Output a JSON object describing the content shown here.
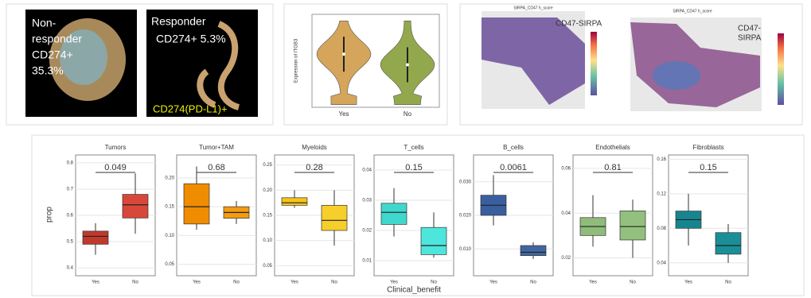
{
  "panel_a": {
    "left_lines": [
      "Non-",
      "responder",
      "CD274+",
      "35.3%"
    ],
    "right_lines": [
      "Responder",
      "CD274+ 5.3%"
    ],
    "marker": "CD274(PD-L1)+"
  },
  "panel_c": {
    "titles": [
      "SIRPA_CD47 h_score",
      "SIRPA_CD47 h_score"
    ],
    "left_label": "CD47-SIRPA",
    "right_label": [
      "CD47-",
      "SIRPA"
    ]
  },
  "box_axes": {
    "ylabel": "prop",
    "xlabel": "Clinical_benefit"
  },
  "chart_data": [
    {
      "type": "violin",
      "ylabel": "Expression of ITGB3",
      "categories": [
        "Yes",
        "No"
      ],
      "colors": [
        "#d4a55a",
        "#93a84c"
      ],
      "medians": [
        0.5,
        0.1
      ],
      "ylim": [
        -1.5,
        2
      ]
    },
    {
      "type": "box",
      "title": "Tumors",
      "pvalue": 0.049,
      "categories": [
        "Yes",
        "No"
      ],
      "colors": [
        "#c0392b",
        "#d9473a"
      ],
      "q1": [
        0.49,
        0.59
      ],
      "median": [
        0.52,
        0.64
      ],
      "q3": [
        0.54,
        0.68
      ],
      "whisker_low": [
        0.45,
        0.53
      ],
      "whisker_high": [
        0.57,
        0.76
      ],
      "ylim": [
        0.37,
        0.83
      ],
      "yticks": [
        0.4,
        0.5,
        0.6,
        0.7,
        0.8
      ]
    },
    {
      "type": "box",
      "title": "Tumor+TAM",
      "pvalue": 0.68,
      "categories": [
        "Yes",
        "No"
      ],
      "colors": [
        "#f08c00",
        "#f39c12"
      ],
      "q1": [
        0.12,
        0.13
      ],
      "median": [
        0.15,
        0.14
      ],
      "q3": [
        0.19,
        0.15
      ],
      "whisker_low": [
        0.11,
        0.12
      ],
      "whisker_high": [
        0.22,
        0.16
      ],
      "ylim": [
        0.03,
        0.24
      ],
      "yticks": [
        0.05,
        {
          "value": 0.1,
          "label": "0.10"
        },
        0.15,
        {
          "value": 0.2,
          "label": "0.20"
        }
      ]
    },
    {
      "type": "box",
      "title": "Myeloids",
      "pvalue": 0.28,
      "categories": [
        "Yes",
        "No"
      ],
      "colors": [
        "#f5c518",
        "#f7cf2a"
      ],
      "q1": [
        0.17,
        0.12
      ],
      "median": [
        0.175,
        0.14
      ],
      "q3": [
        0.185,
        0.17
      ],
      "whisker_low": [
        0.165,
        0.09
      ],
      "whisker_high": [
        0.2,
        0.2
      ],
      "ylim": [
        0.03,
        0.27
      ],
      "yticks": [
        0.05,
        {
          "value": 0.1,
          "label": "0.10"
        },
        0.15,
        {
          "value": 0.2,
          "label": "0.20"
        },
        0.25
      ]
    },
    {
      "type": "box",
      "title": "T_cells",
      "pvalue": 0.15,
      "categories": [
        "Yes",
        "No"
      ],
      "colors": [
        "#40d8cc",
        "#4ee6dc"
      ],
      "q1": [
        0.022,
        0.012
      ],
      "median": [
        0.026,
        0.015
      ],
      "q3": [
        0.029,
        0.021
      ],
      "whisker_low": [
        0.018,
        0.011
      ],
      "whisker_high": [
        0.034,
        0.026
      ],
      "ylim": [
        0.005,
        0.045
      ],
      "yticks": [
        0.01,
        0.02,
        0.03,
        0.04
      ]
    },
    {
      "type": "box",
      "title": "B_cells",
      "pvalue": 0.0061,
      "categories": [
        "Yes",
        "No"
      ],
      "colors": [
        "#3a5f9f",
        "#41669f"
      ],
      "q1": [
        0.02,
        0.008
      ],
      "median": [
        0.023,
        0.009
      ],
      "q3": [
        0.026,
        0.011
      ],
      "whisker_low": [
        0.017,
        0.007
      ],
      "whisker_high": [
        0.032,
        0.012
      ],
      "ylim": [
        0.002,
        0.038
      ],
      "yticks": [
        {
          "value": 0.01,
          "label": "0.010"
        },
        {
          "value": 0.02,
          "label": "0.020"
        },
        {
          "value": 0.03,
          "label": "0.030"
        }
      ]
    },
    {
      "type": "box",
      "title": "Endothelials",
      "pvalue": 0.81,
      "categories": [
        "Yes",
        "No"
      ],
      "colors": [
        "#8fbc7a",
        "#93c07e"
      ],
      "q1": [
        0.03,
        0.028
      ],
      "median": [
        0.034,
        0.034
      ],
      "q3": [
        0.038,
        0.041
      ],
      "whisker_low": [
        0.025,
        0.02
      ],
      "whisker_high": [
        0.048,
        0.046
      ],
      "ylim": [
        0.012,
        0.066
      ],
      "yticks": [
        0.02,
        0.04,
        0.06
      ]
    },
    {
      "type": "box",
      "title": "Fibroblasts",
      "pvalue": 0.15,
      "categories": [
        "Yes",
        "No"
      ],
      "colors": [
        "#16858f",
        "#1a8f98"
      ],
      "q1": [
        0.08,
        0.05
      ],
      "median": [
        0.09,
        0.06
      ],
      "q3": [
        0.1,
        0.075
      ],
      "whisker_low": [
        0.06,
        0.04
      ],
      "whisker_high": [
        0.12,
        0.085
      ],
      "ylim": [
        0.025,
        0.165
      ],
      "yticks": [
        0.04,
        0.08,
        0.12,
        0.16
      ]
    }
  ]
}
